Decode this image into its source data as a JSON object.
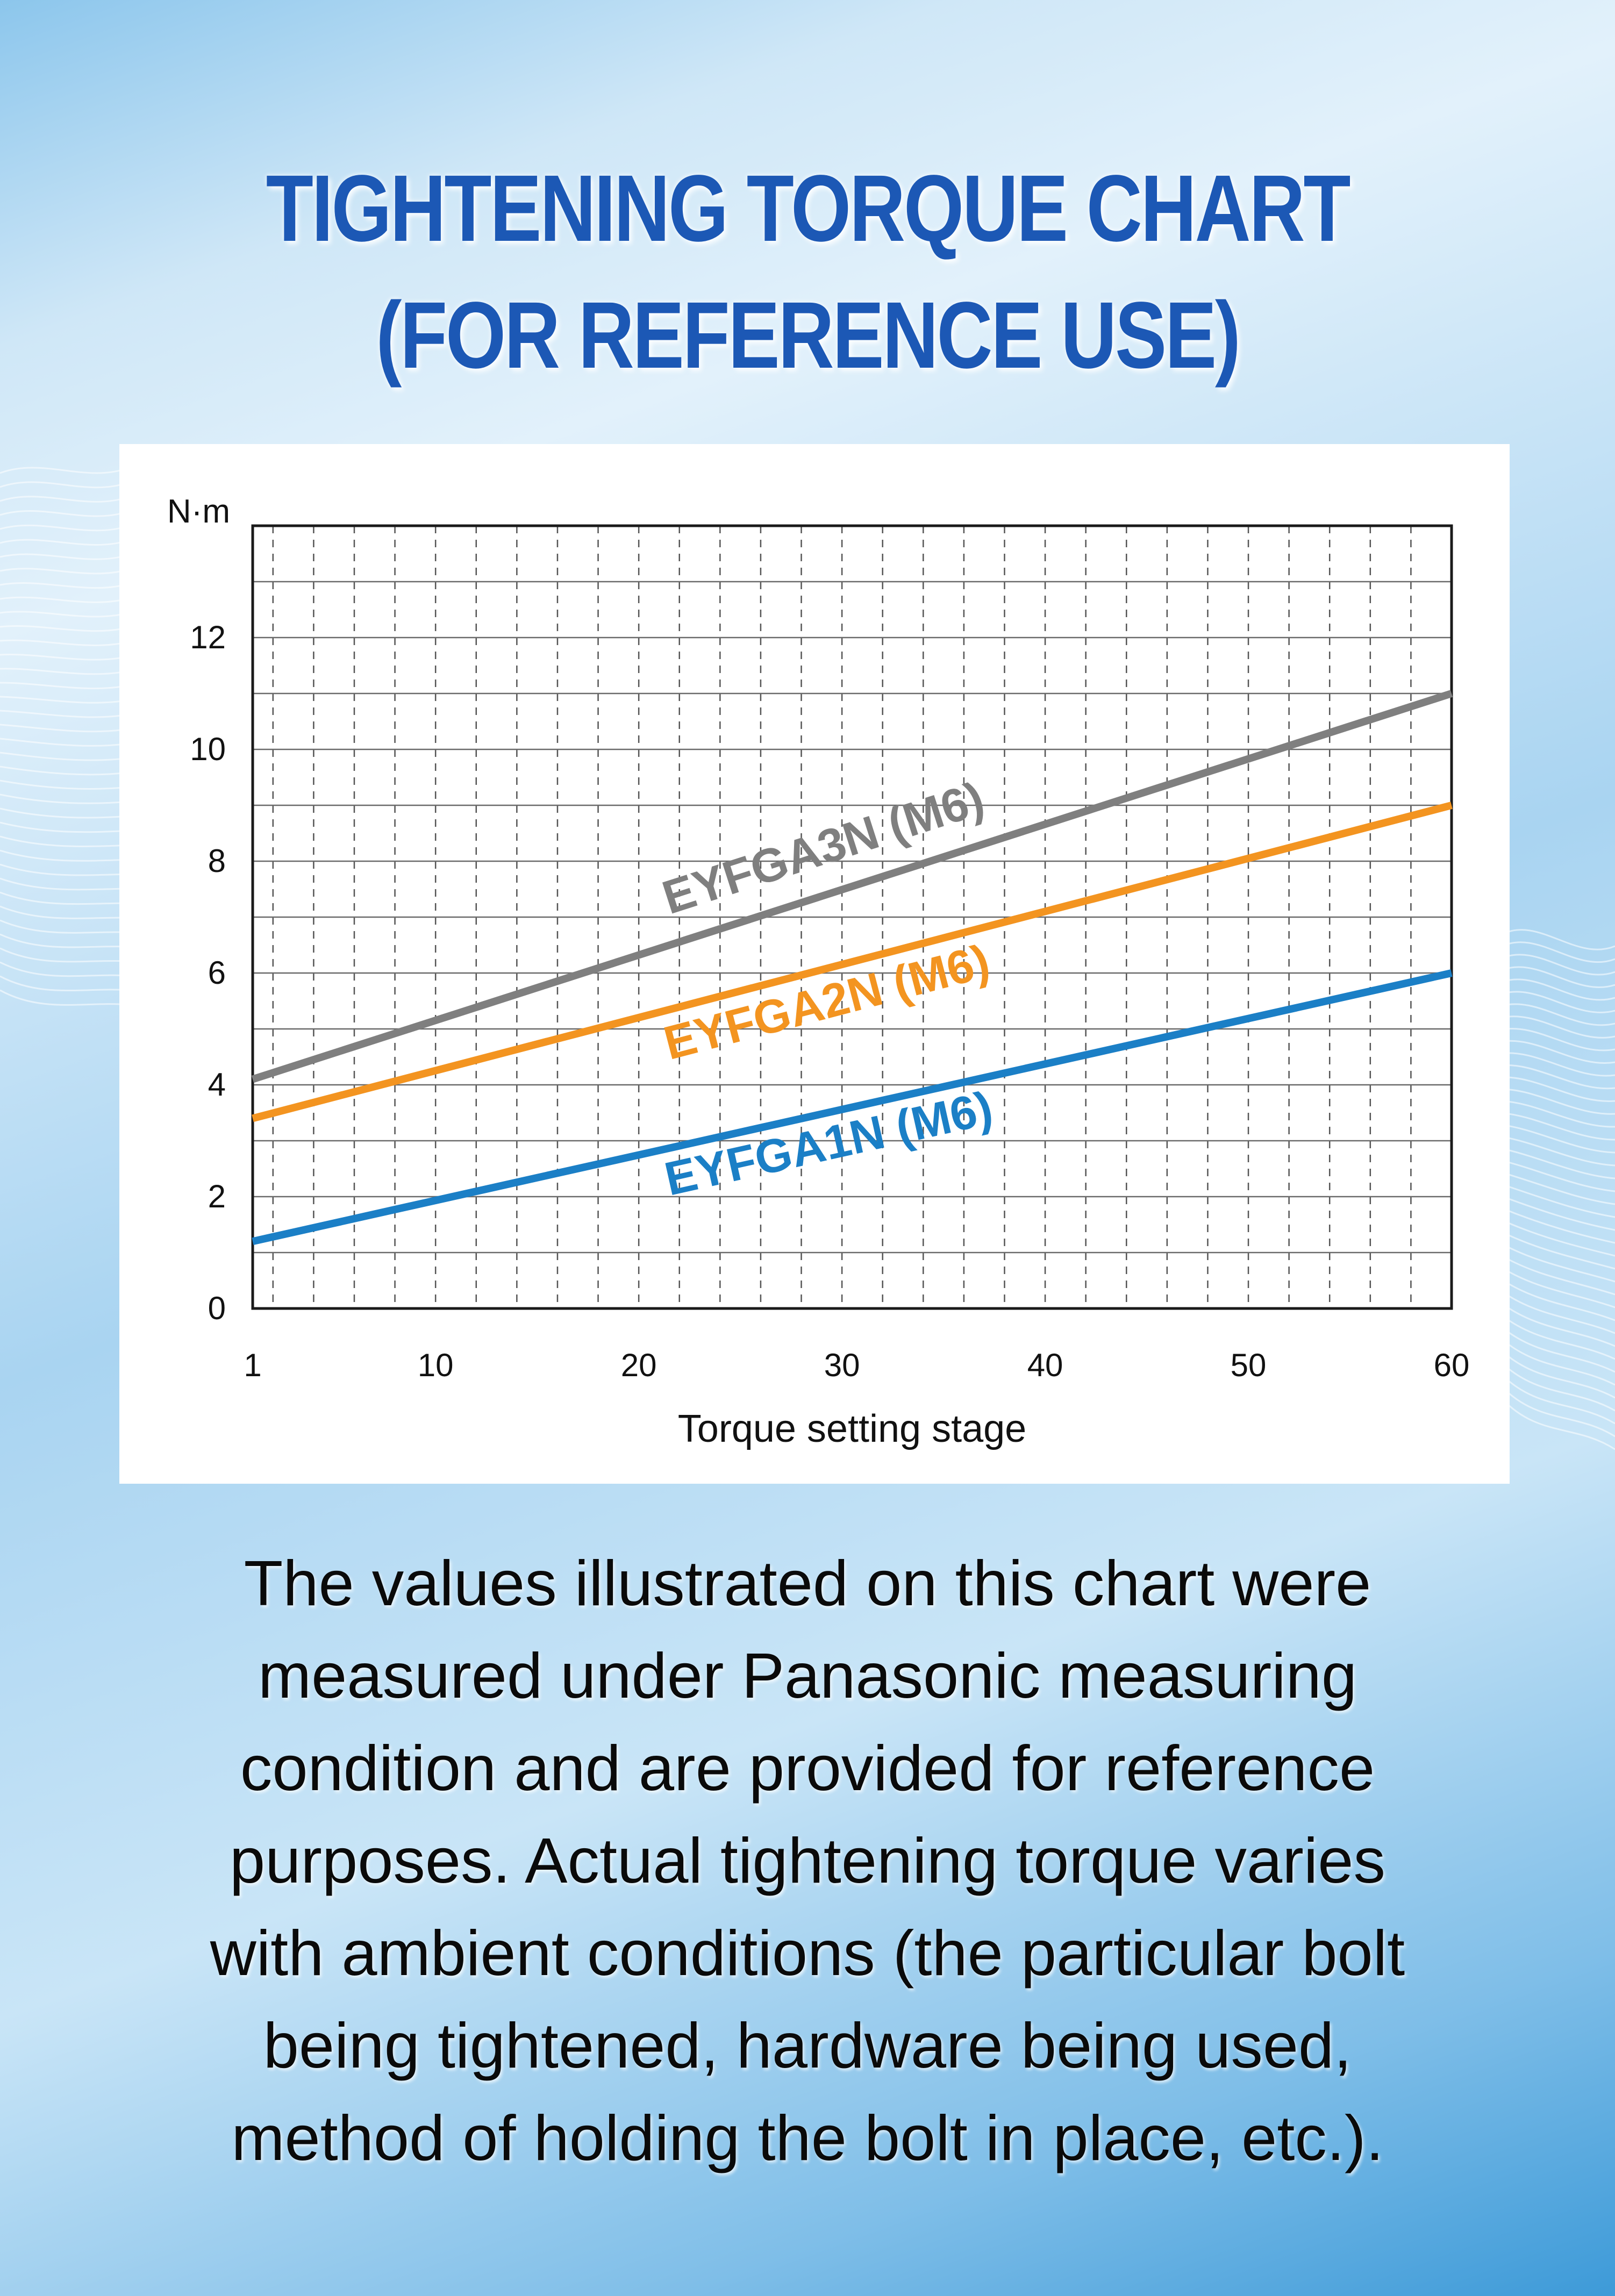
{
  "title": {
    "line1": "TIGHTENING TORQUE CHART",
    "line2": "(FOR REFERENCE USE)"
  },
  "colors": {
    "title": "#1c58b5",
    "grey_series": "#7f7f7f",
    "orange_series": "#f39420",
    "blue_series": "#1b7fc6"
  },
  "chart_data": {
    "type": "line",
    "title": "",
    "xlabel": "Torque setting stage",
    "ylabel": "N·m",
    "xlim": [
      1,
      60
    ],
    "ylim": [
      0,
      14
    ],
    "x_ticks": [
      1,
      10,
      20,
      30,
      40,
      50,
      60
    ],
    "y_ticks": [
      0,
      2,
      4,
      6,
      8,
      10,
      12
    ],
    "grid": true,
    "series": [
      {
        "name": "EYFGA3N (M6)",
        "color": "#7f7f7f",
        "x": [
          1,
          60
        ],
        "y": [
          4.1,
          11.0
        ]
      },
      {
        "name": "EYFGA2N (M6)",
        "color": "#f39420",
        "x": [
          1,
          60
        ],
        "y": [
          3.4,
          9.0
        ]
      },
      {
        "name": "EYFGA1N (M6)",
        "color": "#1b7fc6",
        "x": [
          1,
          60
        ],
        "y": [
          1.2,
          6.0
        ]
      }
    ]
  },
  "note": {
    "lines": [
      "The values illustrated on this chart were",
      "measured under Panasonic measuring",
      "condition and are provided for reference",
      "purposes. Actual tightening torque varies",
      "with ambient conditions (the particular bolt",
      "being tightened, hardware being used,",
      "method of holding the bolt in place, etc.)."
    ]
  }
}
